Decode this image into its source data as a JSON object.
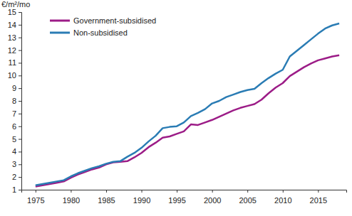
{
  "chart_data": {
    "type": "line",
    "y_label": "€/m²/mo",
    "x": [
      1975,
      1976,
      1977,
      1978,
      1979,
      1980,
      1981,
      1982,
      1983,
      1984,
      1985,
      1986,
      1987,
      1988,
      1989,
      1990,
      1991,
      1992,
      1993,
      1994,
      1995,
      1996,
      1997,
      1998,
      1999,
      2000,
      2001,
      2002,
      2003,
      2004,
      2005,
      2006,
      2007,
      2008,
      2009,
      2010,
      2011,
      2012,
      2013,
      2014,
      2015,
      2016,
      2017,
      2018
    ],
    "series": [
      {
        "name": "Government-subsidised",
        "color": "#9c1c87",
        "values": [
          1.25,
          1.35,
          1.45,
          1.55,
          1.65,
          1.95,
          2.2,
          2.4,
          2.6,
          2.75,
          3.0,
          3.15,
          3.2,
          3.25,
          3.55,
          3.9,
          4.35,
          4.7,
          5.1,
          5.2,
          5.4,
          5.6,
          6.15,
          6.1,
          6.3,
          6.5,
          6.75,
          7.0,
          7.25,
          7.45,
          7.6,
          7.75,
          8.1,
          8.6,
          9.05,
          9.4,
          9.95,
          10.3,
          10.65,
          10.95,
          11.2,
          11.35,
          11.5,
          11.6
        ]
      },
      {
        "name": "Non-subsidised",
        "color": "#2a7cb4",
        "values": [
          1.35,
          1.45,
          1.55,
          1.65,
          1.75,
          2.05,
          2.3,
          2.5,
          2.7,
          2.85,
          3.05,
          3.2,
          3.25,
          3.6,
          3.9,
          4.3,
          4.8,
          5.25,
          5.85,
          5.95,
          6.0,
          6.3,
          6.8,
          7.05,
          7.35,
          7.8,
          8.0,
          8.3,
          8.5,
          8.7,
          8.85,
          8.95,
          9.4,
          9.8,
          10.15,
          10.45,
          11.5,
          11.95,
          12.4,
          12.85,
          13.3,
          13.7,
          13.95,
          14.1
        ]
      }
    ],
    "xlim": [
      1973,
      2019
    ],
    "xticks": [
      1975,
      1980,
      1985,
      1990,
      1995,
      2000,
      2005,
      2010,
      2015
    ],
    "ylim": [
      1,
      15
    ],
    "yticks": [
      1,
      2,
      3,
      4,
      5,
      6,
      7,
      8,
      9,
      10,
      11,
      12,
      13,
      14,
      15
    ],
    "grid": false,
    "legend": "upper left"
  }
}
